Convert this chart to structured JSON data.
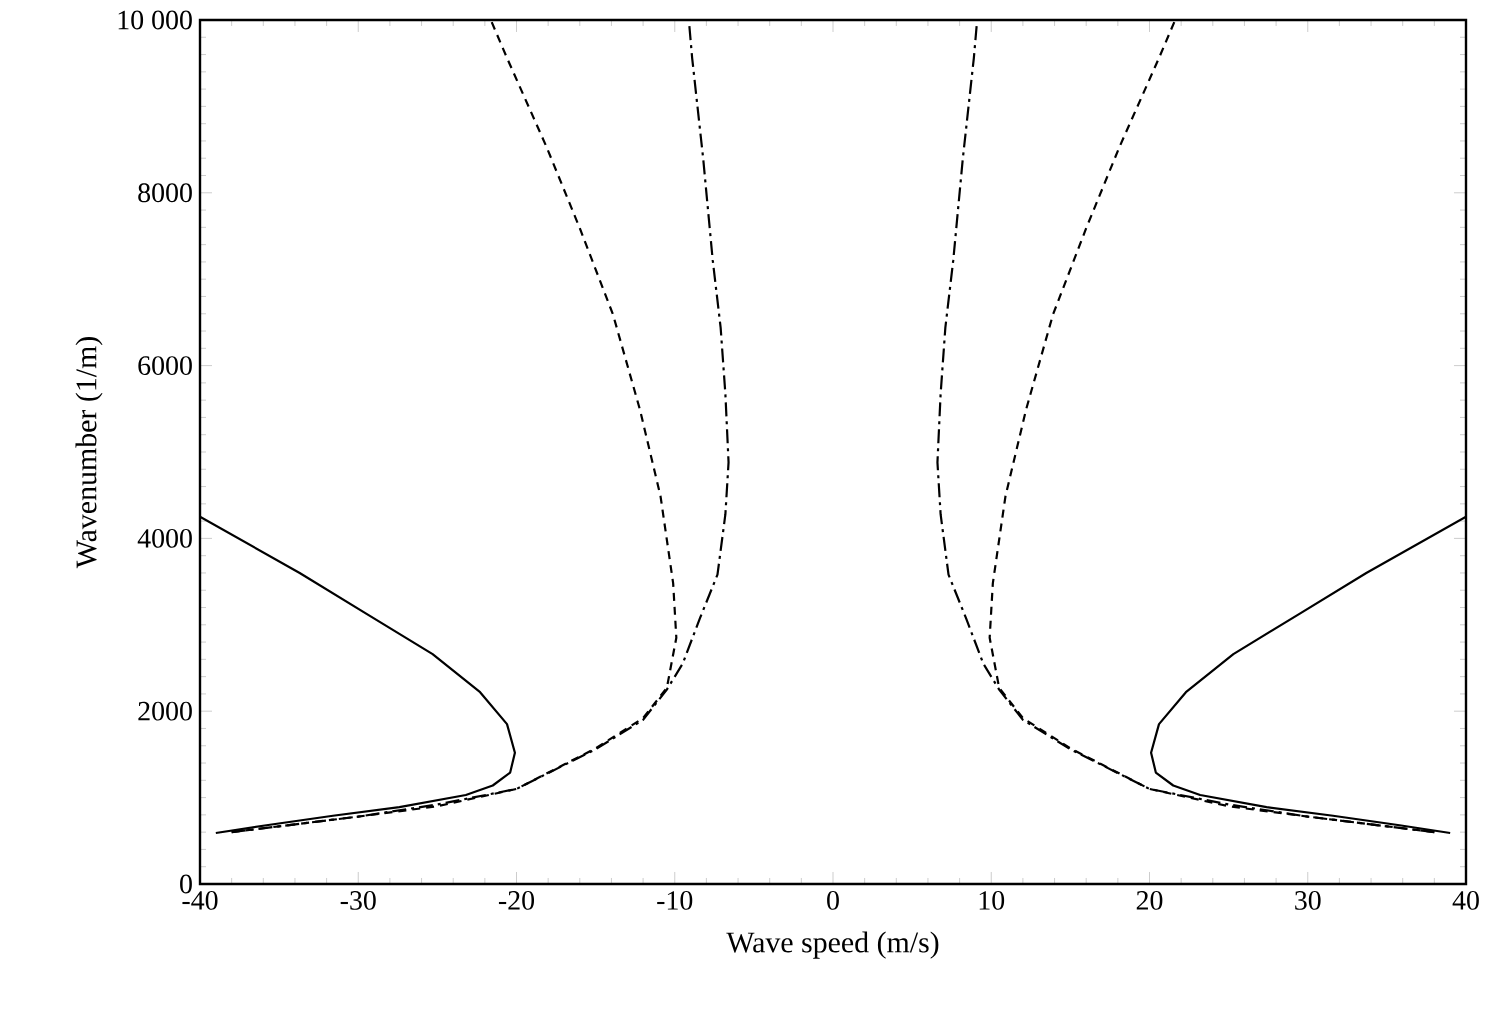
{
  "chart_data": {
    "type": "line",
    "xlabel": "Wave speed (m/s)",
    "ylabel": "Wavenumber (1/m)",
    "xlim": [
      -40,
      40
    ],
    "ylim": [
      0,
      10000
    ],
    "xticks": [
      -40,
      -30,
      -20,
      -10,
      0,
      10,
      20,
      30,
      40
    ],
    "yticks": [
      0,
      2000,
      4000,
      6000,
      8000,
      {
        "value": 10000,
        "label": "10 000"
      }
    ],
    "marker": "none",
    "series": [
      {
        "color": "#000000",
        "line_style": "solid",
        "x": [
          39,
          35.8,
          31.6,
          27.4,
          23.2,
          21.5,
          20.4,
          20.1,
          20.6,
          22.3,
          25.3,
          29.5,
          33.7,
          40
        ],
        "values": [
          590,
          680,
          790,
          890,
          1030,
          1140,
          1290,
          1520,
          1850,
          2220,
          2660,
          3130,
          3600,
          4250
        ]
      },
      {
        "color": "#000000",
        "line_style": "solid",
        "x": [
          -39,
          -35.8,
          -31.6,
          -27.4,
          -23.2,
          -21.5,
          -20.4,
          -20.1,
          -20.6,
          -22.3,
          -25.3,
          -29.5,
          -33.7,
          -40
        ],
        "values": [
          590,
          680,
          790,
          890,
          1030,
          1140,
          1290,
          1520,
          1850,
          2220,
          2660,
          3130,
          3600,
          4250
        ]
      },
      {
        "color": "#000000",
        "line_style": "dashed",
        "x": [
          38,
          30,
          25,
          20,
          15,
          12,
          10.5,
          9.9,
          10.1,
          10.9,
          12.2,
          13.9,
          16.0,
          18.1,
          20.6,
          21.6
        ],
        "values": [
          600,
          780,
          900,
          1100,
          1570,
          1920,
          2270,
          2850,
          3480,
          4490,
          5490,
          6590,
          7590,
          8530,
          9560,
          9990
        ]
      },
      {
        "color": "#000000",
        "line_style": "dashed",
        "x": [
          -38,
          -30,
          -25,
          -20,
          -15,
          -12,
          -10.5,
          -9.9,
          -10.1,
          -10.9,
          -12.2,
          -13.9,
          -16.0,
          -18.1,
          -20.6,
          -21.6
        ],
        "values": [
          600,
          780,
          900,
          1100,
          1570,
          1920,
          2270,
          2850,
          3480,
          4490,
          5490,
          6590,
          7590,
          8530,
          9560,
          9990
        ]
      },
      {
        "color": "#000000",
        "line_style": "dashdot",
        "x": [
          38,
          30,
          25,
          20,
          15,
          12,
          10.5,
          9.5,
          8.4,
          7.3,
          6.8,
          6.6,
          6.8,
          7.1,
          7.6,
          8.2,
          8.9,
          9.1
        ],
        "values": [
          600,
          780,
          920,
          1100,
          1560,
          1900,
          2250,
          2550,
          3080,
          3580,
          4280,
          4880,
          5670,
          6440,
          7220,
          8390,
          9560,
          9980
        ]
      },
      {
        "color": "#000000",
        "line_style": "dashdot",
        "x": [
          -38,
          -30,
          -25,
          -20,
          -15,
          -12,
          -10.5,
          -9.5,
          -8.4,
          -7.3,
          -6.8,
          -6.6,
          -6.8,
          -7.1,
          -7.6,
          -8.2,
          -8.9,
          -9.1
        ],
        "values": [
          600,
          780,
          920,
          1100,
          1560,
          1900,
          2250,
          2550,
          3080,
          3580,
          4280,
          4880,
          5670,
          6440,
          7220,
          8390,
          9560,
          9980
        ]
      }
    ]
  }
}
